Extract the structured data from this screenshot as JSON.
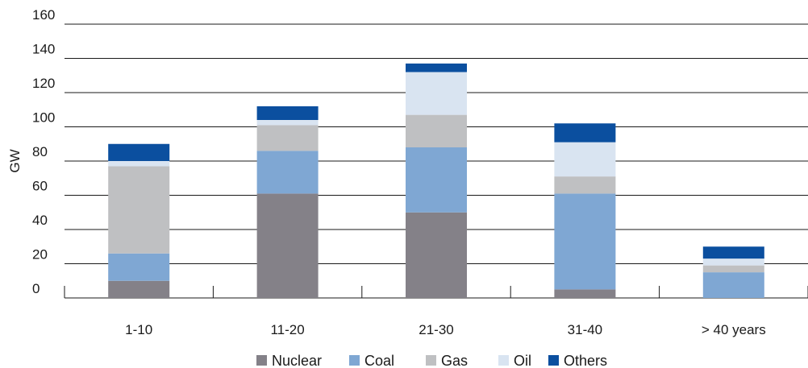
{
  "chart_data": {
    "type": "bar",
    "stacked": true,
    "ylabel": "GW",
    "ylim": [
      0,
      160
    ],
    "yticks": [
      "0",
      "20",
      "40",
      "60",
      "80",
      "100",
      "120",
      "140",
      "160"
    ],
    "grid": true,
    "legend_position": "bottom",
    "categories": [
      "1-10",
      "11-20",
      "21-30",
      "31-40",
      "> 40 years"
    ],
    "series": [
      {
        "name": "Nuclear",
        "color": "#848188",
        "values": [
          10,
          61,
          50,
          5,
          0
        ]
      },
      {
        "name": "Coal",
        "color": "#7fa7d3",
        "values": [
          16,
          25,
          38,
          56,
          15
        ]
      },
      {
        "name": "Gas",
        "color": "#bfc0c2",
        "values": [
          51,
          15,
          19,
          10,
          4
        ]
      },
      {
        "name": "Oil",
        "color": "#d9e4f1",
        "values": [
          3,
          3,
          25,
          20,
          4
        ]
      },
      {
        "name": "Others",
        "color": "#0b4f9f",
        "values": [
          10,
          8,
          5,
          11,
          7
        ]
      }
    ]
  }
}
